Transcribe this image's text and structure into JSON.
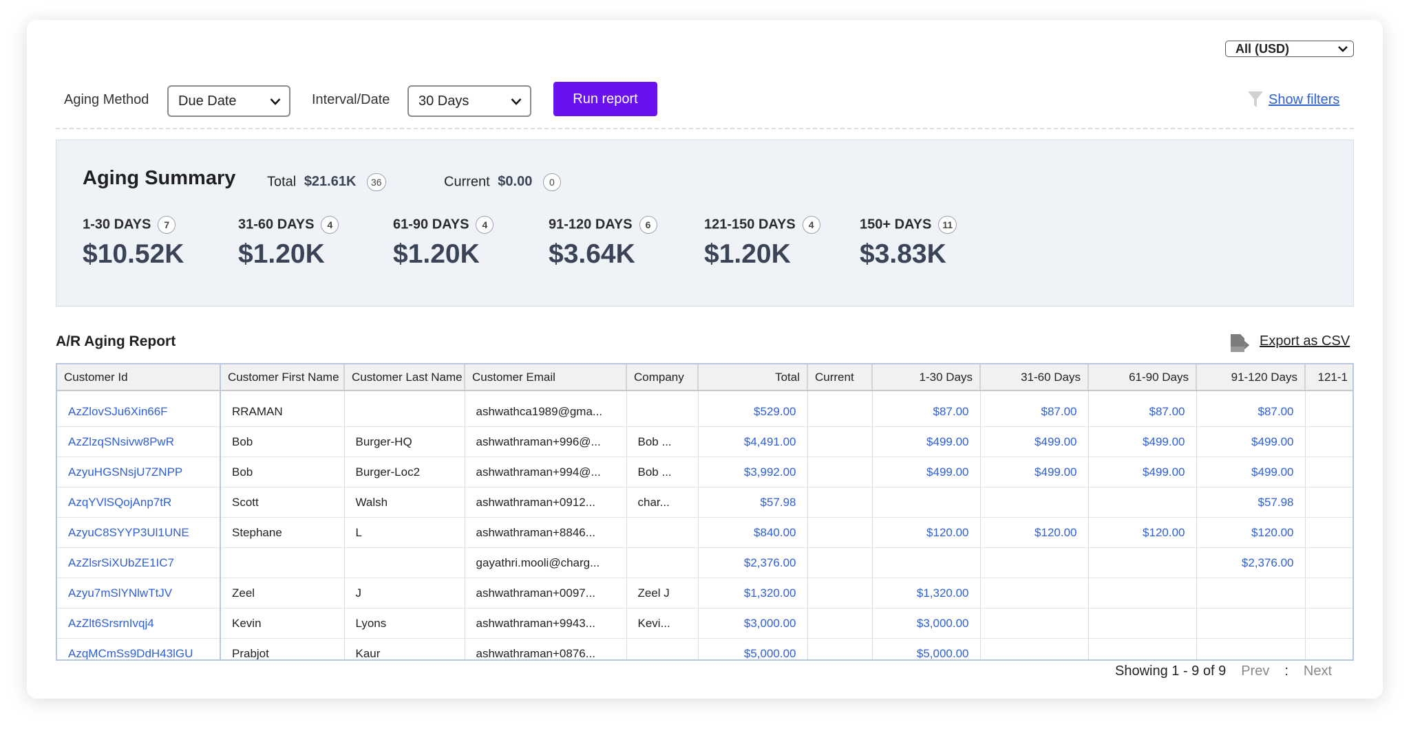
{
  "header": {
    "currency": "All (USD)"
  },
  "controls": {
    "aging_method_label": "Aging Method",
    "aging_method": "Due Date",
    "interval_label": "Interval/Date",
    "interval": "30 Days",
    "run_button": "Run report",
    "show_filters": "Show filters"
  },
  "summary": {
    "title": "Aging Summary",
    "total_label": "Total",
    "total_amount": "$21.61K",
    "total_count": 36,
    "current_label": "Current",
    "current_amount": "$0.00",
    "current_count": 0,
    "buckets": [
      {
        "label": "1-30 DAYS",
        "count": 7,
        "amount": "$10.52K"
      },
      {
        "label": "31-60 DAYS",
        "count": 4,
        "amount": "$1.20K"
      },
      {
        "label": "61-90 DAYS",
        "count": 4,
        "amount": "$1.20K"
      },
      {
        "label": "91-120 DAYS",
        "count": 6,
        "amount": "$3.64K"
      },
      {
        "label": "121-150 DAYS",
        "count": 4,
        "amount": "$1.20K"
      },
      {
        "label": "150+ DAYS",
        "count": 11,
        "amount": "$3.83K"
      }
    ]
  },
  "report": {
    "title": "A/R Aging Report",
    "export": "Export as CSV",
    "columns": [
      "Customer Id",
      "Customer First Name",
      "Customer Last Name",
      "Customer Email",
      "Company",
      "Total",
      "Current",
      "1-30 Days",
      "31-60 Days",
      "61-90 Days",
      "91-120 Days",
      "121-1"
    ],
    "rows": [
      [
        "AzZlovSJu6Xin66F",
        "RRAMAN",
        null,
        "ashwathca1989@gma...",
        null,
        "$529.00",
        null,
        "$87.00",
        "$87.00",
        "$87.00",
        "$87.00",
        null
      ],
      [
        "AzZlzqSNsivw8PwR",
        "Bob",
        "Burger-HQ",
        "ashwathraman+996@...",
        "Bob ...",
        "$4,491.00",
        null,
        "$499.00",
        "$499.00",
        "$499.00",
        "$499.00",
        null
      ],
      [
        "AzyuHGSNsjU7ZNPP",
        "Bob",
        "Burger-Loc2",
        "ashwathraman+994@...",
        "Bob ...",
        "$3,992.00",
        null,
        "$499.00",
        "$499.00",
        "$499.00",
        "$499.00",
        null
      ],
      [
        "AzqYVlSQojAnp7tR",
        "Scott",
        "Walsh",
        "ashwathraman+0912...",
        "char...",
        "$57.98",
        null,
        null,
        null,
        null,
        "$57.98",
        null
      ],
      [
        "AzyuC8SYYP3Ul1UNE",
        "Stephane",
        "L",
        "ashwathraman+8846...",
        null,
        "$840.00",
        null,
        "$120.00",
        "$120.00",
        "$120.00",
        "$120.00",
        null
      ],
      [
        "AzZlsrSiXUbZE1IC7",
        null,
        null,
        "gayathri.mooli@charg...",
        null,
        "$2,376.00",
        null,
        null,
        null,
        null,
        "$2,376.00",
        null
      ],
      [
        "Azyu7mSlYNlwTtJV",
        "Zeel",
        "J",
        "ashwathraman+0097...",
        "Zeel J",
        "$1,320.00",
        null,
        "$1,320.00",
        null,
        null,
        null,
        null
      ],
      [
        "AzZlt6SrsrnIvqj4",
        "Kevin",
        "Lyons",
        "ashwathraman+9943...",
        "Kevi...",
        "$3,000.00",
        null,
        "$3,000.00",
        null,
        null,
        null,
        null
      ],
      [
        "AzqMCmSs9DdH43lGU",
        "Prabjot",
        "Kaur",
        "ashwathraman+0876...",
        null,
        "$5,000.00",
        null,
        "$5,000.00",
        null,
        null,
        null,
        null
      ]
    ]
  },
  "pagination": {
    "showing": "Showing 1 - 9 of 9",
    "prev": "Prev",
    "separator": ":",
    "next": "Next"
  }
}
